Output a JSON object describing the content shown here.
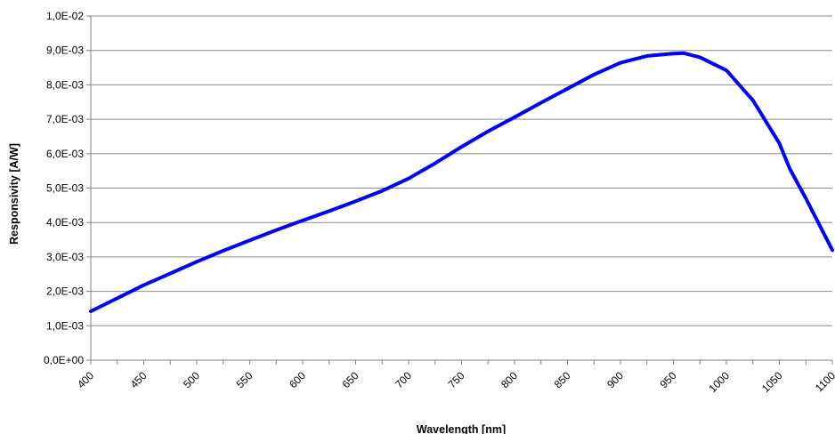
{
  "chart_data": {
    "type": "line",
    "xlabel": "Wavelength [nm]",
    "ylabel": "Responsivity [A/W]",
    "xlim": [
      400,
      1100
    ],
    "ylim": [
      0,
      0.01
    ],
    "grid": "horizontal",
    "x_ticks": [
      400,
      450,
      500,
      550,
      600,
      650,
      700,
      750,
      800,
      850,
      900,
      950,
      1000,
      1050,
      1100
    ],
    "x_tick_labels": [
      "400",
      "450",
      "500",
      "550",
      "600",
      "650",
      "700",
      "750",
      "800",
      "850",
      "900",
      "950",
      "1000",
      "1050",
      "1100"
    ],
    "y_ticks": [
      0,
      0.001,
      0.002,
      0.003,
      0.004,
      0.005,
      0.006,
      0.007,
      0.008,
      0.009,
      0.01
    ],
    "y_tick_labels": [
      "0,0E+00",
      "1,0E-03",
      "2,0E-03",
      "3,0E-03",
      "4,0E-03",
      "5,0E-03",
      "6,0E-03",
      "7,0E-03",
      "8,0E-03",
      "9,0E-03",
      "1,0E-02"
    ],
    "line_color": "#0000ff",
    "series": [
      {
        "x": [
          400,
          425,
          450,
          475,
          500,
          525,
          550,
          575,
          600,
          625,
          650,
          675,
          700,
          725,
          750,
          775,
          800,
          825,
          850,
          875,
          900,
          925,
          950,
          960,
          975,
          1000,
          1025,
          1050,
          1060,
          1075,
          1100
        ],
        "values": [
          0.00142,
          0.0018,
          0.00218,
          0.00252,
          0.00286,
          0.00318,
          0.00348,
          0.00378,
          0.00406,
          0.00433,
          0.00462,
          0.00492,
          0.00528,
          0.00572,
          0.0062,
          0.00665,
          0.00706,
          0.00748,
          0.00789,
          0.0083,
          0.00864,
          0.00884,
          0.00891,
          0.00892,
          0.0088,
          0.00842,
          0.00755,
          0.0063,
          0.00555,
          0.0047,
          0.0032
        ]
      }
    ]
  }
}
